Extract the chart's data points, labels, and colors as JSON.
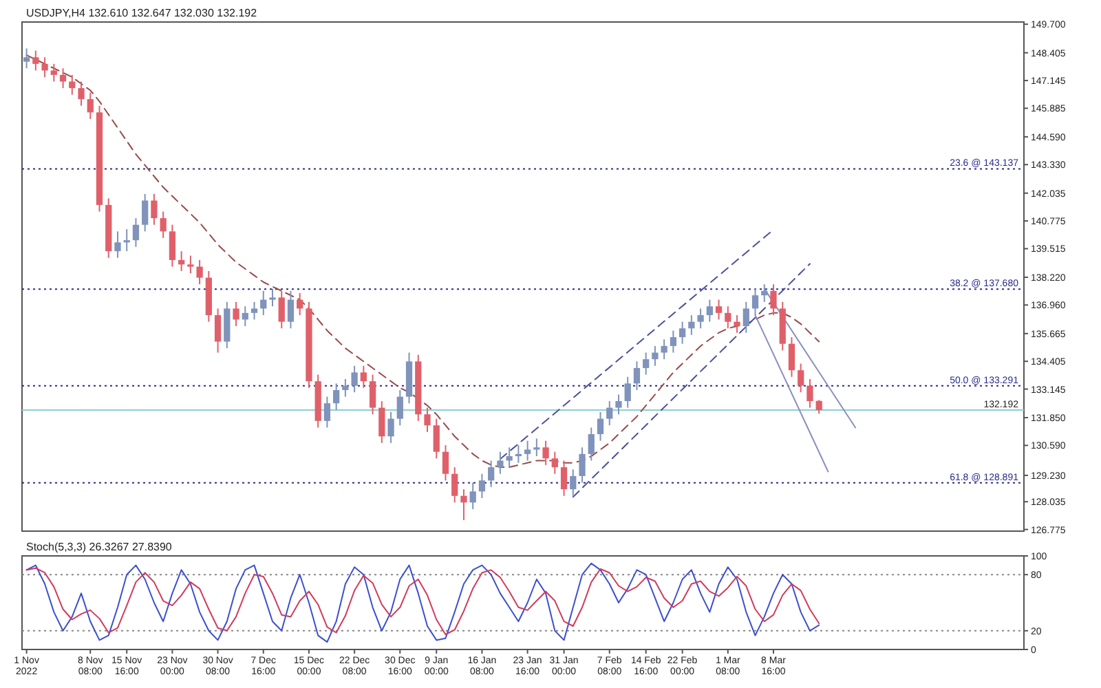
{
  "chart_data": [
    {
      "type": "candlestick",
      "title": "USDJPY,H4 132.610 132.647 132.030 132.192",
      "categories": [
        null,
        null,
        null,
        null,
        null,
        null,
        null,
        null,
        null,
        null,
        null,
        null,
        null,
        null,
        null,
        null,
        null,
        null,
        null,
        null,
        null,
        null,
        null,
        null,
        null,
        null,
        null,
        null,
        null,
        null,
        null,
        null,
        null,
        null,
        null,
        null,
        null,
        null,
        null,
        null,
        null,
        null,
        null,
        null,
        null,
        null,
        null,
        null,
        null,
        null,
        null,
        null,
        null,
        null,
        null,
        null,
        null,
        null,
        null,
        null,
        null,
        null,
        null,
        null,
        null,
        null,
        null,
        null,
        null,
        null,
        null,
        null,
        null,
        null,
        null,
        null,
        null,
        null,
        null,
        null,
        null,
        null,
        null,
        null,
        null,
        null,
        null,
        null,
        null,
        null,
        null,
        null,
        null,
        null,
        null,
        null,
        null,
        null,
        null,
        null,
        null,
        null,
        null,
        null,
        null,
        null,
        null,
        null,
        null,
        null
      ],
      "ohlc": [
        [
          148.0,
          148.6,
          147.7,
          148.2
        ],
        [
          148.2,
          148.5,
          147.6,
          147.9
        ],
        [
          147.9,
          148.2,
          147.3,
          147.6
        ],
        [
          147.6,
          147.9,
          147.1,
          147.4
        ],
        [
          147.4,
          147.7,
          146.8,
          147.1
        ],
        [
          147.1,
          147.4,
          146.5,
          146.8
        ],
        [
          146.8,
          147.1,
          146.0,
          146.3
        ],
        [
          146.3,
          146.6,
          145.4,
          145.7
        ],
        [
          145.7,
          146.0,
          141.2,
          141.5
        ],
        [
          141.5,
          141.8,
          139.1,
          139.4
        ],
        [
          139.4,
          140.3,
          139.1,
          139.8
        ],
        [
          139.8,
          140.4,
          139.4,
          139.9
        ],
        [
          139.9,
          140.9,
          139.6,
          140.6
        ],
        [
          140.6,
          142.0,
          140.3,
          141.7
        ],
        [
          141.7,
          142.0,
          140.6,
          140.9
        ],
        [
          140.9,
          141.2,
          140.0,
          140.3
        ],
        [
          140.3,
          140.6,
          138.7,
          139.0
        ],
        [
          139.0,
          139.4,
          138.5,
          138.8
        ],
        [
          138.8,
          139.2,
          138.4,
          138.7
        ],
        [
          138.7,
          139.0,
          137.9,
          138.2
        ],
        [
          138.2,
          138.5,
          136.2,
          136.5
        ],
        [
          136.5,
          136.8,
          134.8,
          135.3
        ],
        [
          135.3,
          137.1,
          135.0,
          136.8
        ],
        [
          136.8,
          137.1,
          136.0,
          136.3
        ],
        [
          136.3,
          136.9,
          136.0,
          136.6
        ],
        [
          136.6,
          137.1,
          136.3,
          136.8
        ],
        [
          136.8,
          137.6,
          136.5,
          137.2
        ],
        [
          137.2,
          137.7,
          136.9,
          137.3
        ],
        [
          137.3,
          137.6,
          135.9,
          136.2
        ],
        [
          136.2,
          137.6,
          135.9,
          137.2
        ],
        [
          137.2,
          137.5,
          136.5,
          136.8
        ],
        [
          136.8,
          137.1,
          133.2,
          133.5
        ],
        [
          133.5,
          133.8,
          131.4,
          131.7
        ],
        [
          131.7,
          132.8,
          131.4,
          132.5
        ],
        [
          132.5,
          133.4,
          132.2,
          133.1
        ],
        [
          133.1,
          133.6,
          132.8,
          133.3
        ],
        [
          133.3,
          134.2,
          133.0,
          133.9
        ],
        [
          133.9,
          134.2,
          133.2,
          133.5
        ],
        [
          133.5,
          133.8,
          132.0,
          132.3
        ],
        [
          132.3,
          132.6,
          130.7,
          131.0
        ],
        [
          131.0,
          132.1,
          130.7,
          131.8
        ],
        [
          131.8,
          133.1,
          131.5,
          132.8
        ],
        [
          132.8,
          134.8,
          132.5,
          134.4
        ],
        [
          134.4,
          134.7,
          131.7,
          132.0
        ],
        [
          132.0,
          132.3,
          131.2,
          131.5
        ],
        [
          131.5,
          131.8,
          130.0,
          130.3
        ],
        [
          130.3,
          130.6,
          129.0,
          129.3
        ],
        [
          129.3,
          129.6,
          128.0,
          128.3
        ],
        [
          128.3,
          128.6,
          127.2,
          128.0
        ],
        [
          128.0,
          128.9,
          127.7,
          128.5
        ],
        [
          128.5,
          129.3,
          128.2,
          129.0
        ],
        [
          129.0,
          129.9,
          128.7,
          129.6
        ],
        [
          129.6,
          130.3,
          129.3,
          129.9
        ],
        [
          129.9,
          130.5,
          129.6,
          130.1
        ],
        [
          130.1,
          130.6,
          129.8,
          130.2
        ],
        [
          130.2,
          130.8,
          129.9,
          130.4
        ],
        [
          130.4,
          130.9,
          130.1,
          130.5
        ],
        [
          130.5,
          130.8,
          129.7,
          130.0
        ],
        [
          130.0,
          130.3,
          129.3,
          129.6
        ],
        [
          129.6,
          129.9,
          128.3,
          128.6
        ],
        [
          128.6,
          129.5,
          128.3,
          129.2
        ],
        [
          129.2,
          130.5,
          128.9,
          130.2
        ],
        [
          130.2,
          131.4,
          129.9,
          131.1
        ],
        [
          131.1,
          132.1,
          130.8,
          131.8
        ],
        [
          131.8,
          132.6,
          131.5,
          132.3
        ],
        [
          132.3,
          132.9,
          132.0,
          132.6
        ],
        [
          132.6,
          133.7,
          132.3,
          133.4
        ],
        [
          133.4,
          134.4,
          133.1,
          134.1
        ],
        [
          134.1,
          134.8,
          133.8,
          134.5
        ],
        [
          134.5,
          135.1,
          134.2,
          134.8
        ],
        [
          134.8,
          135.4,
          134.5,
          135.1
        ],
        [
          135.1,
          135.8,
          134.8,
          135.5
        ],
        [
          135.5,
          136.2,
          135.2,
          135.9
        ],
        [
          135.9,
          136.5,
          135.6,
          136.2
        ],
        [
          136.2,
          136.8,
          135.9,
          136.5
        ],
        [
          136.5,
          137.2,
          136.2,
          136.9
        ],
        [
          136.9,
          137.2,
          136.3,
          136.6
        ],
        [
          136.6,
          136.9,
          135.9,
          136.2
        ],
        [
          136.2,
          136.5,
          135.7,
          136.0
        ],
        [
          136.0,
          137.1,
          135.7,
          136.8
        ],
        [
          136.8,
          137.7,
          136.5,
          137.4
        ],
        [
          137.4,
          137.9,
          137.1,
          137.6
        ],
        [
          137.6,
          137.9,
          136.5,
          136.8
        ],
        [
          136.8,
          137.1,
          134.9,
          135.2
        ],
        [
          135.2,
          135.5,
          133.7,
          134.0
        ],
        [
          134.0,
          134.3,
          133.0,
          133.3
        ],
        [
          133.3,
          133.6,
          132.3,
          132.6
        ],
        [
          132.61,
          132.647,
          132.03,
          132.192
        ],
        null,
        null,
        null,
        null,
        null,
        null,
        null,
        null,
        null,
        null,
        null,
        null,
        null,
        null,
        null,
        null,
        null,
        null,
        null,
        null,
        null,
        null
      ],
      "series": [
        {
          "type": "line",
          "color": "#9a4a4a",
          "line_style": "dashed",
          "values": [
            148.3,
            148.1,
            147.9,
            147.7,
            147.5,
            147.3,
            147.0,
            146.7,
            146.2,
            145.6,
            145.0,
            144.4,
            143.8,
            143.3,
            142.8,
            142.3,
            141.9,
            141.5,
            141.1,
            140.7,
            140.2,
            139.7,
            139.3,
            138.9,
            138.6,
            138.3,
            138.0,
            137.8,
            137.6,
            137.4,
            137.2,
            136.8,
            136.3,
            135.8,
            135.4,
            135.0,
            134.7,
            134.4,
            134.1,
            133.8,
            133.5,
            133.2,
            133.0,
            132.7,
            132.4,
            132.0,
            131.5,
            131.0,
            130.6,
            130.2,
            129.9,
            129.7,
            129.6,
            129.6,
            129.7,
            129.8,
            129.9,
            129.9,
            129.9,
            129.8,
            129.8,
            129.9,
            130.1,
            130.4,
            130.7,
            131.1,
            131.5,
            131.9,
            132.4,
            132.9,
            133.4,
            133.9,
            134.3,
            134.7,
            135.1,
            135.4,
            135.7,
            135.9,
            136.0,
            136.1,
            136.3,
            136.5,
            136.6,
            136.6,
            136.4,
            136.1,
            135.7,
            135.3,
            null,
            null,
            null,
            null,
            null,
            null,
            null,
            null,
            null,
            null,
            null,
            null,
            null,
            null,
            null,
            null,
            null,
            null,
            null,
            null,
            null,
            null
          ]
        },
        {
          "type": "line",
          "color": "#4b4f9a",
          "line_style": "dashed",
          "values": [
            null,
            null,
            null,
            null,
            null,
            null,
            null,
            null,
            null,
            null,
            null,
            null,
            null,
            null,
            null,
            null,
            null,
            null,
            null,
            null,
            null,
            null,
            null,
            null,
            null,
            null,
            null,
            null,
            null,
            null,
            null,
            null,
            null,
            null,
            null,
            null,
            null,
            null,
            null,
            null,
            null,
            null,
            null,
            null,
            null,
            null,
            null,
            null,
            null,
            null,
            null,
            null,
            129.97,
            null,
            null,
            null,
            null,
            null,
            null,
            null,
            null,
            null,
            null,
            null,
            null,
            null,
            null,
            null,
            null,
            null,
            null,
            null,
            null,
            null,
            null,
            null,
            null,
            null,
            null,
            null,
            null,
            null,
            140.38,
            null,
            null,
            null,
            null,
            null,
            null,
            null,
            null,
            null,
            null,
            null,
            null,
            null,
            null,
            null,
            null,
            null,
            null,
            null,
            null,
            null,
            null,
            null,
            null,
            null,
            null,
            null
          ]
        },
        {
          "type": "line",
          "color": "#4b4f9a",
          "line_style": "dashed",
          "values": [
            null,
            null,
            null,
            null,
            null,
            null,
            null,
            null,
            null,
            null,
            null,
            null,
            null,
            null,
            null,
            null,
            null,
            null,
            null,
            null,
            null,
            null,
            null,
            null,
            null,
            null,
            null,
            null,
            null,
            null,
            null,
            null,
            null,
            null,
            null,
            null,
            null,
            null,
            null,
            null,
            null,
            null,
            null,
            null,
            null,
            null,
            null,
            null,
            null,
            null,
            null,
            null,
            null,
            null,
            null,
            null,
            null,
            null,
            null,
            null,
            128.25,
            null,
            null,
            null,
            null,
            null,
            null,
            null,
            null,
            null,
            null,
            null,
            null,
            null,
            null,
            null,
            null,
            null,
            null,
            null,
            null,
            null,
            null,
            null,
            null,
            null,
            138.83,
            null,
            null,
            null,
            null,
            null,
            null,
            null,
            null,
            null,
            null,
            null,
            null,
            null,
            null,
            null,
            null,
            null,
            null,
            null,
            null,
            null,
            null,
            null
          ]
        },
        {
          "type": "line",
          "color": "#8a8fc0",
          "line_style": "solid",
          "values": [
            null,
            null,
            null,
            null,
            null,
            null,
            null,
            null,
            null,
            null,
            null,
            null,
            null,
            null,
            null,
            null,
            null,
            null,
            null,
            null,
            null,
            null,
            null,
            null,
            null,
            null,
            null,
            null,
            null,
            null,
            null,
            null,
            null,
            null,
            null,
            null,
            null,
            null,
            null,
            null,
            null,
            null,
            null,
            null,
            null,
            null,
            null,
            null,
            null,
            null,
            null,
            null,
            null,
            null,
            null,
            null,
            null,
            null,
            null,
            null,
            null,
            null,
            null,
            null,
            null,
            null,
            null,
            null,
            null,
            null,
            null,
            null,
            null,
            null,
            null,
            null,
            null,
            null,
            null,
            null,
            null,
            137.7,
            null,
            null,
            null,
            null,
            null,
            null,
            null,
            null,
            null,
            131.4,
            null,
            null,
            null,
            null,
            null,
            null,
            null,
            null,
            null,
            null,
            null,
            null,
            null,
            null,
            null,
            null,
            null,
            null
          ]
        },
        {
          "type": "line",
          "color": "#8a8fc0",
          "line_style": "solid",
          "values": [
            null,
            null,
            null,
            null,
            null,
            null,
            null,
            null,
            null,
            null,
            null,
            null,
            null,
            null,
            null,
            null,
            null,
            null,
            null,
            null,
            null,
            null,
            null,
            null,
            null,
            null,
            null,
            null,
            null,
            null,
            null,
            null,
            null,
            null,
            null,
            null,
            null,
            null,
            null,
            null,
            null,
            null,
            null,
            null,
            null,
            null,
            null,
            null,
            null,
            null,
            null,
            null,
            null,
            null,
            null,
            null,
            null,
            null,
            null,
            null,
            null,
            null,
            null,
            null,
            null,
            null,
            null,
            null,
            null,
            null,
            null,
            null,
            null,
            null,
            null,
            null,
            null,
            null,
            null,
            null,
            136.5,
            null,
            null,
            null,
            null,
            null,
            null,
            null,
            129.4,
            null,
            null,
            null,
            null,
            null,
            null,
            null,
            null,
            null,
            null,
            null,
            null,
            null,
            null,
            null,
            null,
            null,
            null,
            null,
            null,
            null
          ]
        }
      ],
      "ylim": [
        126.7,
        149.8
      ],
      "yticks": [
        {
          "value": 149.7,
          "label": "149.700"
        },
        {
          "value": 148.405,
          "label": "148.405"
        },
        {
          "value": 147.145,
          "label": "147.145"
        },
        {
          "value": 145.885,
          "label": "145.885"
        },
        {
          "value": 144.59,
          "label": "144.590"
        },
        {
          "value": 143.33,
          "label": "143.330"
        },
        {
          "value": 142.035,
          "label": "142.035"
        },
        {
          "value": 140.775,
          "label": "140.775"
        },
        {
          "value": 139.515,
          "label": "139.515"
        },
        {
          "value": 138.22,
          "label": "138.220"
        },
        {
          "value": 136.96,
          "label": "136.960"
        },
        {
          "value": 135.665,
          "label": "135.665"
        },
        {
          "value": 134.405,
          "label": "134.405"
        },
        {
          "value": 133.145,
          "label": "133.145"
        },
        {
          "value": 131.85,
          "label": "131.850"
        },
        {
          "value": 130.59,
          "label": "130.590"
        },
        {
          "value": 129.23,
          "label": "129.230"
        },
        {
          "value": 128.035,
          "label": "128.035"
        },
        {
          "value": 126.775,
          "label": "126.775"
        }
      ],
      "ref_lines": [
        {
          "axis": "y",
          "value": 143.137,
          "label": "23.6 @ 143.137",
          "color": "#2a2a8a",
          "line_style": "dotted"
        },
        {
          "axis": "y",
          "value": 137.68,
          "label": "38.2 @ 137.680",
          "color": "#2a2a8a",
          "line_style": "dotted"
        },
        {
          "axis": "y",
          "value": 133.291,
          "label": "50.0 @ 133.291",
          "color": "#2a2a8a",
          "line_style": "dotted"
        },
        {
          "axis": "y",
          "value": 128.891,
          "label": "61.8 @ 128.891",
          "color": "#2a2a8a",
          "line_style": "dotted"
        },
        {
          "axis": "y",
          "value": 132.192,
          "label": "132.192",
          "color": "#8ecfcf",
          "line_style": "solid"
        }
      ],
      "tick_labels": "y"
    },
    {
      "type": "line",
      "title": "Stoch(5,3,3) 26.3267 27.8390",
      "categories": [
        "1 Nov 2022",
        null,
        null,
        null,
        null,
        null,
        null,
        "8 Nov 08:00",
        null,
        null,
        null,
        "15 Nov 16:00",
        null,
        null,
        null,
        null,
        "23 Nov 00:00",
        null,
        null,
        null,
        null,
        "30 Nov 08:00",
        null,
        null,
        null,
        null,
        "7 Dec 16:00",
        null,
        null,
        null,
        null,
        "15 Dec 00:00",
        null,
        null,
        null,
        null,
        "22 Dec 08:00",
        null,
        null,
        null,
        null,
        "30 Dec 16:00",
        null,
        null,
        null,
        "9 Jan 00:00",
        null,
        null,
        null,
        null,
        "16 Jan 08:00",
        null,
        null,
        null,
        null,
        "23 Jan 16:00",
        null,
        null,
        null,
        "31 Jan 00:00",
        null,
        null,
        null,
        null,
        "7 Feb 08:00",
        null,
        null,
        null,
        "14 Feb 16:00",
        null,
        null,
        null,
        "22 Feb 00:00",
        null,
        null,
        null,
        null,
        "1 Mar 08:00",
        null,
        null,
        null,
        null,
        "8 Mar 16:00",
        null,
        null,
        null,
        null,
        null,
        null,
        null,
        null,
        null,
        null,
        null,
        null,
        null,
        null,
        null,
        null,
        null,
        null,
        null,
        null,
        null,
        null,
        null,
        null,
        null,
        null,
        null
      ],
      "series": [
        {
          "color": "#3b4fd0",
          "values": [
            85,
            90,
            70,
            40,
            20,
            35,
            60,
            30,
            10,
            15,
            45,
            80,
            90,
            75,
            50,
            30,
            60,
            85,
            70,
            40,
            20,
            10,
            30,
            65,
            85,
            90,
            60,
            30,
            20,
            55,
            80,
            50,
            15,
            8,
            30,
            70,
            88,
            80,
            45,
            20,
            40,
            75,
            90,
            60,
            25,
            10,
            12,
            40,
            70,
            85,
            90,
            80,
            60,
            45,
            30,
            50,
            75,
            60,
            20,
            10,
            45,
            80,
            92,
            85,
            70,
            50,
            65,
            85,
            80,
            55,
            30,
            50,
            75,
            85,
            60,
            40,
            70,
            88,
            75,
            40,
            15,
            35,
            60,
            80,
            70,
            40,
            20,
            26,
            null,
            null,
            null,
            null,
            null,
            null,
            null,
            null,
            null,
            null,
            null,
            null,
            null,
            null,
            null,
            null,
            null,
            null,
            null,
            null,
            null,
            null
          ]
        },
        {
          "color": "#d03b5b",
          "values": [
            85,
            87,
            82,
            67,
            43,
            32,
            38,
            42,
            33,
            18,
            23,
            47,
            72,
            82,
            72,
            52,
            47,
            58,
            72,
            65,
            43,
            23,
            20,
            35,
            60,
            80,
            78,
            60,
            37,
            35,
            52,
            62,
            48,
            24,
            18,
            36,
            63,
            79,
            71,
            48,
            35,
            45,
            68,
            75,
            58,
            32,
            16,
            21,
            41,
            65,
            82,
            85,
            77,
            62,
            45,
            42,
            52,
            62,
            52,
            30,
            25,
            45,
            72,
            86,
            82,
            68,
            62,
            67,
            77,
            73,
            55,
            45,
            52,
            70,
            73,
            62,
            57,
            66,
            78,
            68,
            43,
            30,
            37,
            58,
            70,
            63,
            43,
            28,
            null,
            null,
            null,
            null,
            null,
            null,
            null,
            null,
            null,
            null,
            null,
            null,
            null,
            null,
            null,
            null,
            null,
            null,
            null,
            null,
            null,
            null
          ]
        }
      ],
      "ylim": [
        0,
        100
      ],
      "yticks": [
        0,
        20,
        80,
        100
      ],
      "ref_lines": [
        {
          "axis": "y",
          "value": 80,
          "color": "#888888",
          "line_style": "dotted"
        },
        {
          "axis": "y",
          "value": 20,
          "color": "#888888",
          "line_style": "dotted"
        }
      ]
    }
  ]
}
